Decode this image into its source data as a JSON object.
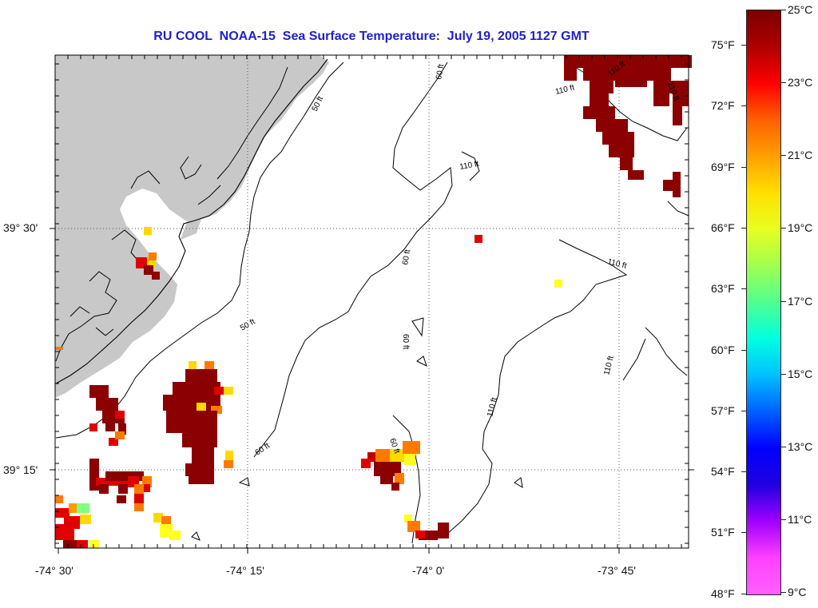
{
  "title": "RU COOL  NOAA-15  Sea Surface Temperature:  July 19, 2005 1127 GMT",
  "map": {
    "lat_labels": [
      "39° 30'",
      "39° 15'"
    ],
    "lon_labels": [
      "-74° 30'",
      "-74° 15'",
      "-74° 0'",
      "-73° 45'"
    ],
    "contour_labels": [
      "50 ft",
      "50 ft",
      "60 ft",
      "60 ft",
      "60 ft",
      "60 ft",
      "60 ft",
      "110 ft",
      "110 ft",
      "110 ft",
      "110 ft",
      "110 ft",
      "110 ft",
      "110 ft"
    ],
    "land_color": "#c8c8c8",
    "ocean_color": "#ffffff"
  },
  "colorbar": {
    "celsius_labels": [
      "25°C",
      "23°C",
      "21°C",
      "19°C",
      "17°C",
      "15°C",
      "13°C",
      "11°C",
      "9°C"
    ],
    "fahrenheit_labels": [
      "75°F",
      "72°F",
      "69°F",
      "66°F",
      "63°F",
      "60°F",
      "57°F",
      "54°F",
      "51°F",
      "48°F"
    ],
    "range_c": [
      9,
      25
    ],
    "colors": [
      "#8b0000",
      "#ff0000",
      "#ff8c00",
      "#ffff00",
      "#90ee60",
      "#00ffff",
      "#0060ff",
      "#0000ff",
      "#8000ff",
      "#ff00ff"
    ]
  }
}
